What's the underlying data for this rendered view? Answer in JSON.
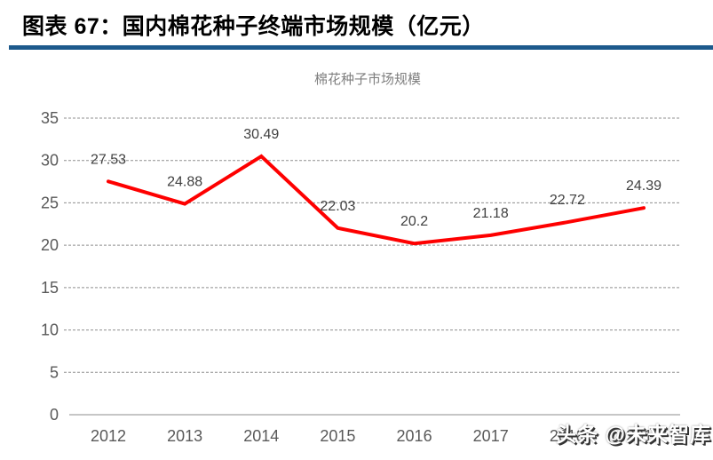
{
  "header": {
    "title": "图表 67：国内棉花种子终端市场规模（亿元）"
  },
  "watermark": {
    "text": "头条 @未来智库"
  },
  "colors": {
    "header_text": "#000000",
    "divider": "#1d5a8c",
    "line": "#fe0000",
    "grid": "#8f8f8f",
    "zero_axis": "#c6c6c6",
    "axis_text": "#595959",
    "data_label": "#404040",
    "chart_title_text": "#7f7f7f"
  },
  "chart_data": {
    "type": "line",
    "title": "棉花种子市场规模",
    "categories": [
      "2012",
      "2013",
      "2014",
      "2015",
      "2016",
      "2017",
      "2018",
      "2019"
    ],
    "values": [
      27.53,
      24.88,
      30.49,
      22.03,
      20.2,
      21.18,
      22.72,
      24.39
    ],
    "series_name": "棉花种子市场规模",
    "xlabel": "",
    "ylabel": "",
    "ylim": [
      0,
      35
    ],
    "yticks": [
      0,
      5,
      10,
      15,
      20,
      25,
      30,
      35
    ],
    "grid": "horizontal-dashed",
    "legend_position": "none",
    "data_labels": "above-points"
  }
}
